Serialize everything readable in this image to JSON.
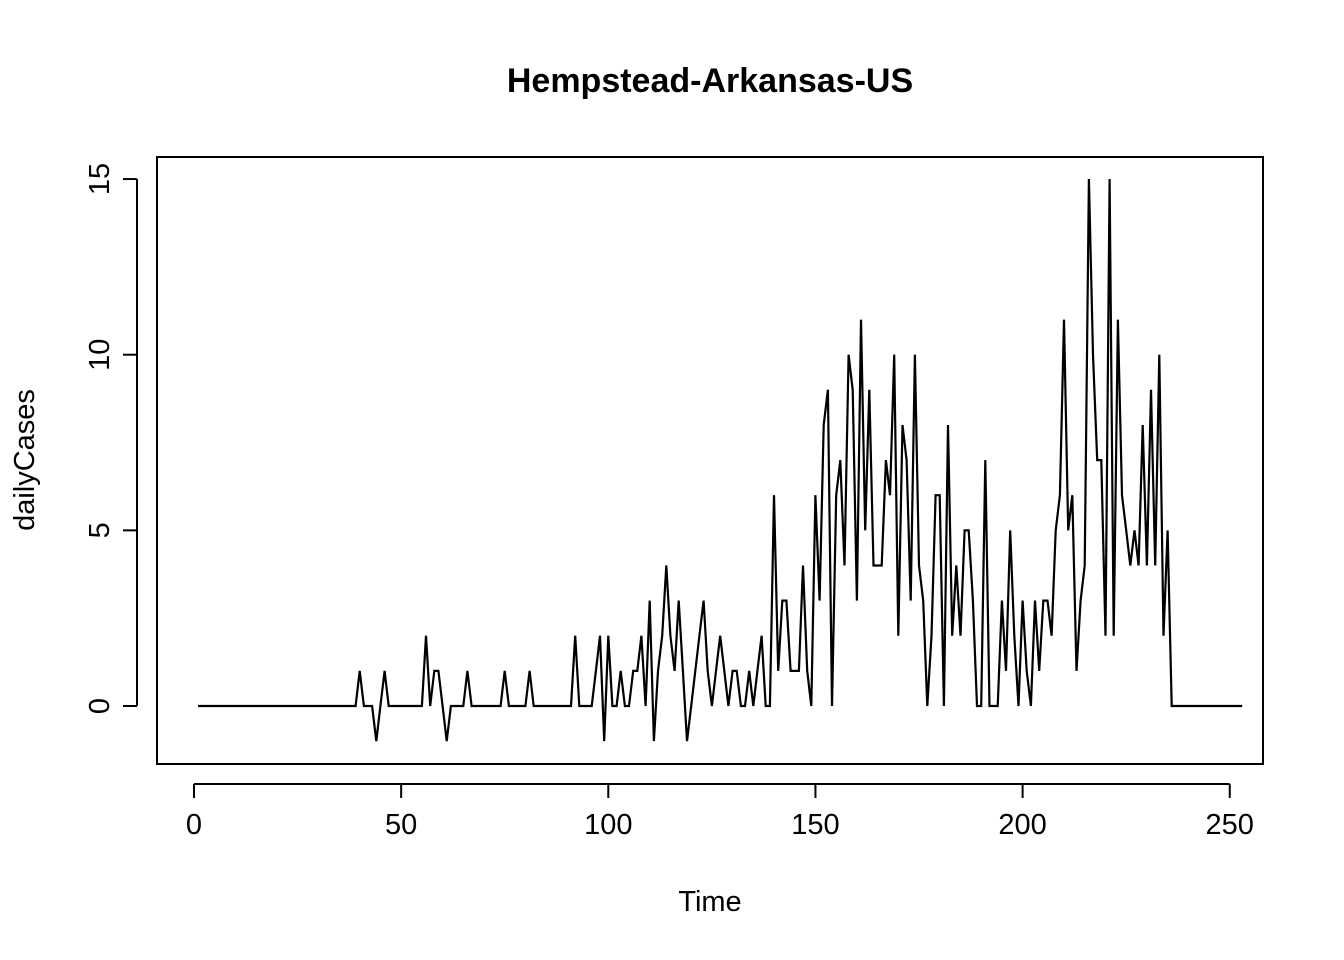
{
  "chart_data": {
    "type": "line",
    "title": "Hempstead-Arkansas-US",
    "xlabel": "Time",
    "ylabel": "dailyCases",
    "xlim": [
      1,
      248
    ],
    "ylim": [
      -1,
      15
    ],
    "xticks": [
      0,
      50,
      100,
      150,
      200,
      250
    ],
    "yticks": [
      0,
      5,
      10,
      15
    ],
    "grid": false,
    "legend": "none",
    "line_color": "#000000",
    "series": [
      {
        "x_start": 1,
        "values": [
          0,
          0,
          0,
          0,
          0,
          0,
          0,
          0,
          0,
          0,
          0,
          0,
          0,
          0,
          0,
          0,
          0,
          0,
          0,
          0,
          0,
          0,
          0,
          0,
          0,
          0,
          0,
          0,
          0,
          0,
          0,
          0,
          0,
          0,
          0,
          0,
          0,
          0,
          0,
          1,
          0,
          0,
          0,
          -1,
          0,
          1,
          0,
          0,
          0,
          0,
          0,
          0,
          0,
          0,
          0,
          2,
          0,
          1,
          1,
          0,
          -1,
          0,
          0,
          0,
          0,
          1,
          0,
          0,
          0,
          0,
          0,
          0,
          0,
          0,
          1,
          0,
          0,
          0,
          0,
          0,
          1,
          0,
          0,
          0,
          0,
          0,
          0,
          0,
          0,
          0,
          0,
          2,
          0,
          0,
          0,
          0,
          1,
          2,
          -1,
          2,
          0,
          0,
          1,
          0,
          0,
          1,
          1,
          2,
          0,
          3,
          -1,
          1,
          2,
          4,
          2,
          1,
          3,
          1,
          -1,
          0,
          1,
          2,
          3,
          1,
          0,
          1,
          2,
          1,
          0,
          1,
          1,
          0,
          0,
          1,
          0,
          1,
          2,
          0,
          0,
          6,
          1,
          3,
          3,
          1,
          1,
          1,
          4,
          1,
          0,
          6,
          3,
          8,
          9,
          0,
          6,
          7,
          4,
          10,
          9,
          3,
          11,
          5,
          9,
          4,
          4,
          4,
          7,
          6,
          10,
          2,
          8,
          7,
          3,
          10,
          4,
          3,
          0,
          2,
          6,
          6,
          0,
          8,
          2,
          4,
          2,
          5,
          5,
          3,
          0,
          0,
          7,
          0,
          0,
          0,
          3,
          1,
          5,
          2,
          0,
          3,
          1,
          0,
          3,
          1,
          3,
          3,
          2,
          5,
          6,
          11,
          5,
          6,
          1,
          3,
          4,
          15,
          10,
          7,
          7,
          2,
          15,
          2,
          11,
          6,
          5,
          4,
          5,
          4,
          8,
          4,
          9,
          4,
          10,
          2,
          5,
          0,
          0,
          0,
          0,
          0,
          0,
          0,
          0,
          0,
          0,
          0,
          0,
          0,
          0,
          0,
          0,
          0,
          0
        ]
      }
    ]
  }
}
